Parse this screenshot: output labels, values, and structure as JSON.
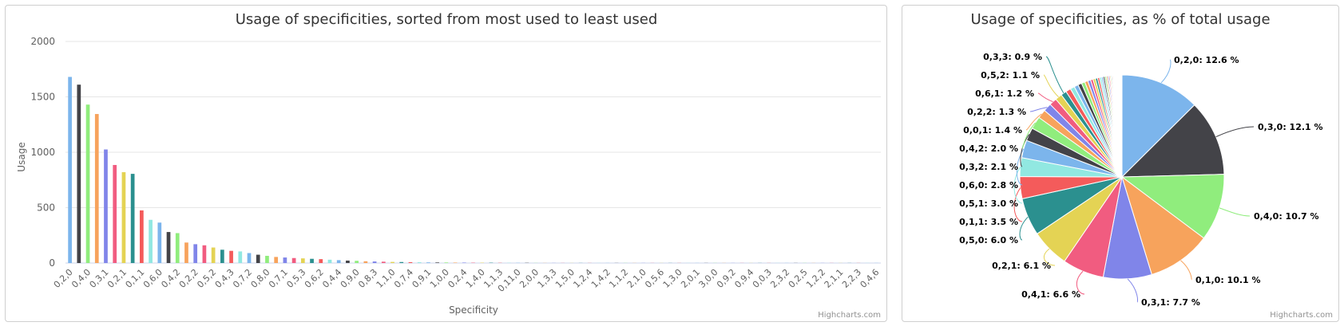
{
  "chart_data": [
    {
      "type": "bar",
      "title": "Usage of specificities, sorted from most used to least used",
      "xlabel": "Specificity",
      "ylabel": "Usage",
      "ylim": [
        0,
        2000
      ],
      "yticks": [
        "0",
        "500",
        "1000",
        "1500",
        "2000"
      ],
      "grid": true,
      "credits": "Highcharts.com",
      "x_tick_labels": [
        "0,2,0",
        "0,4,0",
        "0,3,1",
        "0,2,1",
        "0,1,1",
        "0,6,0",
        "0,4,2",
        "0,2,2",
        "0,5,2",
        "0,4,3",
        "0,7,2",
        "0,8,0",
        "0,7,1",
        "0,5,3",
        "0,6,2",
        "0,4,4",
        "0,9,0",
        "0,8,3",
        "1,1,0",
        "0,7,4",
        "0,9,1",
        "1,0,0",
        "0,2,4",
        "1,4,0",
        "1,1,3",
        "0,11,0",
        "2,0,0",
        "1,3,3",
        "1,5,0",
        "1,2,4",
        "1,4,2",
        "1,1,2",
        "2,1,0",
        "0,5,6",
        "1,3,0",
        "2,0,1",
        "3,0,0",
        "0,9,2",
        "0,9,4",
        "0,0,3",
        "2,3,2",
        "0,2,5",
        "1,2,2",
        "2,1,1",
        "2,2,3",
        "0,4,6"
      ],
      "values": [
        1680,
        1610,
        1430,
        1345,
        1025,
        885,
        820,
        805,
        475,
        390,
        365,
        280,
        270,
        185,
        170,
        160,
        140,
        120,
        110,
        105,
        90,
        75,
        65,
        55,
        50,
        45,
        42,
        38,
        35,
        30,
        26,
        22,
        20,
        16,
        14,
        12,
        10,
        9,
        8,
        7,
        6,
        5,
        5,
        4,
        4,
        3,
        3,
        3,
        2,
        2,
        2,
        2,
        1,
        1,
        1,
        1,
        1,
        1,
        1,
        1,
        1,
        1,
        1,
        1,
        1,
        1,
        1,
        1,
        1,
        1,
        1,
        1,
        1,
        1,
        1,
        1,
        1,
        1,
        1,
        1,
        1,
        1,
        1,
        1,
        1,
        1,
        1,
        1,
        1,
        1,
        1
      ],
      "colors": [
        "#7cb5ec",
        "#434348",
        "#90ed7d",
        "#f7a35c",
        "#8085e9",
        "#f15c80",
        "#e4d354",
        "#2b908f",
        "#f45b5b",
        "#91e8e1"
      ]
    },
    {
      "type": "pie",
      "title": "Usage of specificities, as % of total usage",
      "credits": "Highcharts.com",
      "slices": [
        {
          "label": "0,2,0: 12.6 %",
          "value": 12.6
        },
        {
          "label": "0,3,0: 12.1 %",
          "value": 12.1
        },
        {
          "label": "0,4,0: 10.7 %",
          "value": 10.7
        },
        {
          "label": "0,1,0: 10.1 %",
          "value": 10.1
        },
        {
          "label": "0,3,1: 7.7 %",
          "value": 7.7
        },
        {
          "label": "0,4,1: 6.6 %",
          "value": 6.6
        },
        {
          "label": "0,2,1: 6.1 %",
          "value": 6.1
        },
        {
          "label": "0,5,0: 6.0 %",
          "value": 6.0
        },
        {
          "label": "0,1,1: 3.5 %",
          "value": 3.5
        },
        {
          "label": "0,5,1: 3.0 %",
          "value": 3.0
        },
        {
          "label": "0,6,0: 2.8 %",
          "value": 2.8
        },
        {
          "label": "0,3,2: 2.1 %",
          "value": 2.1
        },
        {
          "label": "0,4,2: 2.0 %",
          "value": 2.0
        },
        {
          "label": "0,0,1: 1.4 %",
          "value": 1.4
        },
        {
          "label": "0,2,2: 1.3 %",
          "value": 1.3
        },
        {
          "label": "0,6,1: 1.2 %",
          "value": 1.2
        },
        {
          "label": "0,5,2: 1.1 %",
          "value": 1.1
        },
        {
          "label": "0,3,3: 0.9 %",
          "value": 0.9
        }
      ],
      "tail_values": [
        0.8,
        0.7,
        0.65,
        0.6,
        0.55,
        0.5,
        0.45,
        0.4,
        0.38,
        0.35,
        0.32,
        0.3,
        0.28,
        0.26,
        0.24,
        0.22,
        0.2,
        0.18,
        0.16,
        0.15,
        0.14,
        0.13,
        0.12,
        0.11,
        0.1,
        0.1,
        0.09,
        0.09,
        0.08,
        0.08,
        0.07,
        0.07,
        0.06,
        0.06,
        0.05,
        0.05,
        0.05,
        0.04,
        0.04,
        0.04
      ],
      "colors": [
        "#7cb5ec",
        "#434348",
        "#90ed7d",
        "#f7a35c",
        "#8085e9",
        "#f15c80",
        "#e4d354",
        "#2b908f",
        "#f45b5b",
        "#91e8e1"
      ]
    }
  ]
}
